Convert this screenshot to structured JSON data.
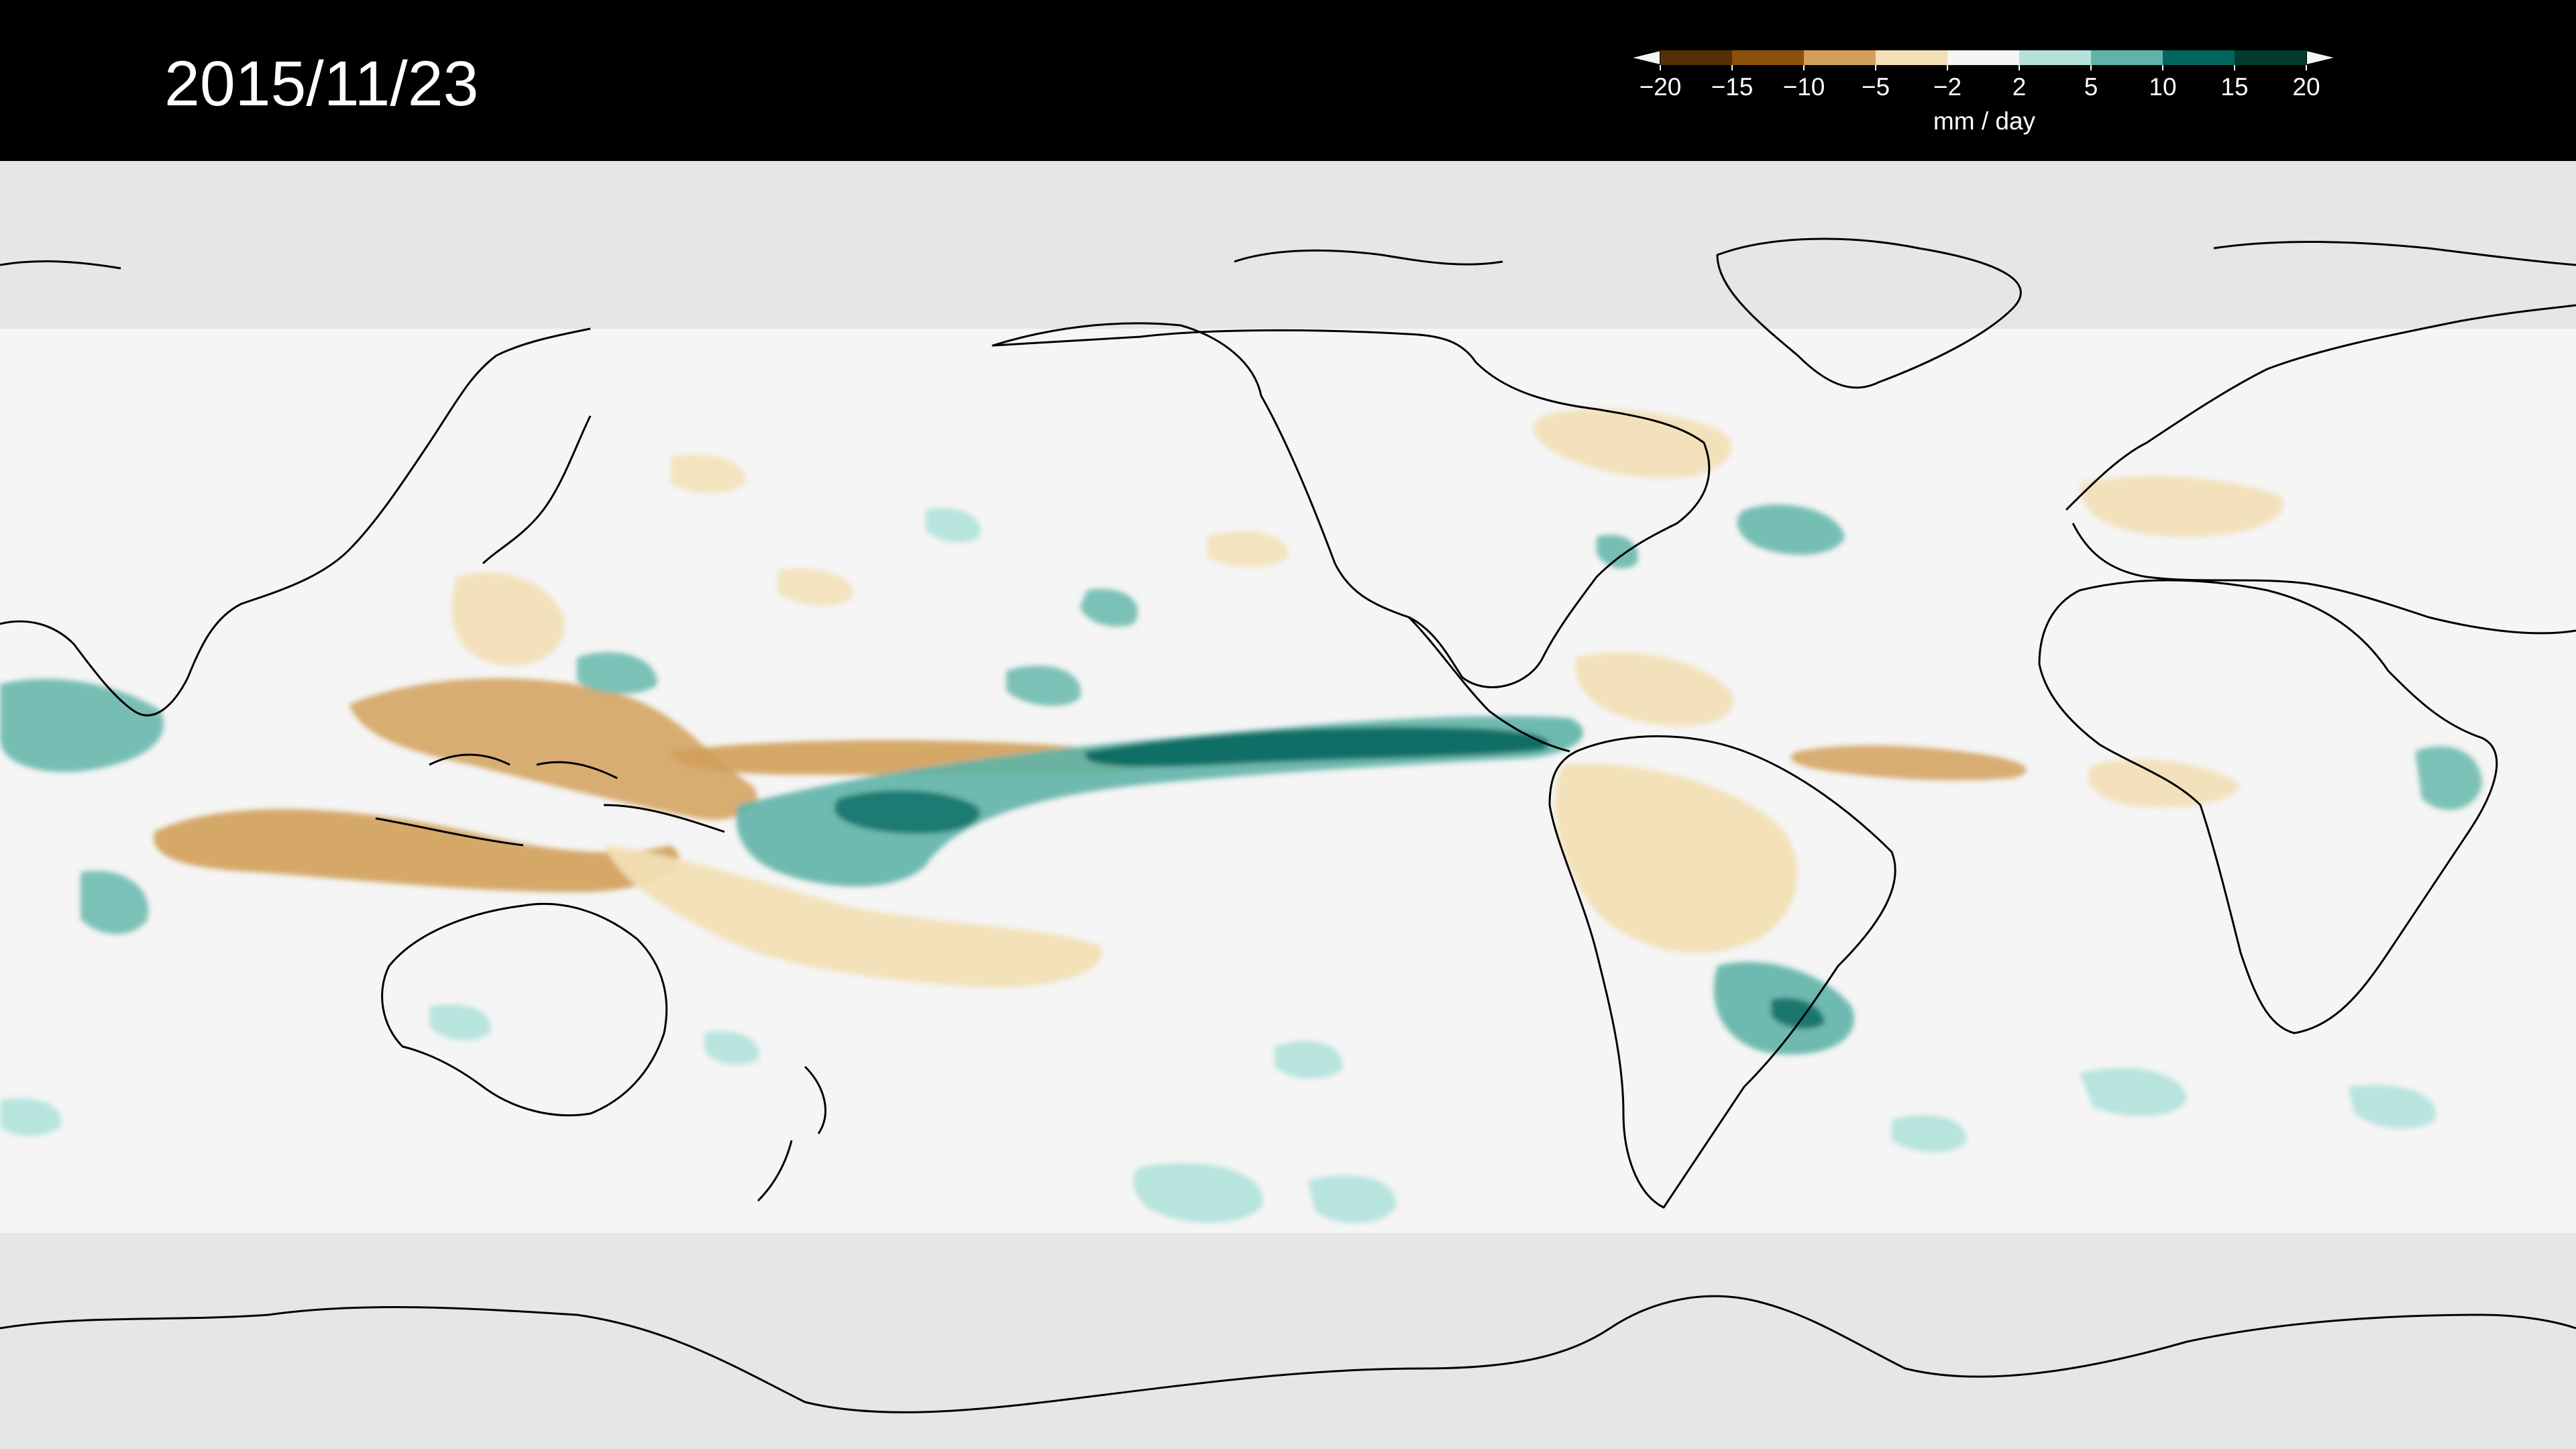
{
  "header": {
    "date": "2015/11/23"
  },
  "colorbar": {
    "unit_label": "mm / day",
    "tick_labels": [
      "−20",
      "−15",
      "−10",
      "−5",
      "−2",
      "2",
      "5",
      "10",
      "15",
      "20"
    ],
    "bins": [
      {
        "from": -20,
        "to": -15,
        "color": "#543005"
      },
      {
        "from": -15,
        "to": -10,
        "color": "#8c510a"
      },
      {
        "from": -10,
        "to": -5,
        "color": "#d2a05a"
      },
      {
        "from": -5,
        "to": -2,
        "color": "#f2dfb5"
      },
      {
        "from": -2,
        "to": 2,
        "color": "#f5f5f5"
      },
      {
        "from": 2,
        "to": 5,
        "color": "#b4e3dc"
      },
      {
        "from": 5,
        "to": 10,
        "color": "#5fb4a8"
      },
      {
        "from": 10,
        "to": 15,
        "color": "#01665e"
      },
      {
        "from": 15,
        "to": 20,
        "color": "#003c30"
      }
    ],
    "extend_low_color": "#f5f5f5",
    "extend_high_color": "#f5f5f5"
  },
  "map": {
    "variable": "precipitation anomaly",
    "no_data_color": "#e6e6e6",
    "background_color": "#f5f5f5",
    "coastline_color": "#000000",
    "features": [
      {
        "name": "itcz-wet-band",
        "color": "#5fb4a8"
      },
      {
        "name": "itcz-wet-core",
        "color": "#01665e"
      },
      {
        "name": "maritime-continent-dry",
        "color": "#d2a05a"
      },
      {
        "name": "indian-ocean-dry",
        "color": "#d2a05a"
      },
      {
        "name": "south-pacific-dry",
        "color": "#f2dfb5"
      },
      {
        "name": "atlantic-dry-band",
        "color": "#d2a05a"
      }
    ]
  }
}
